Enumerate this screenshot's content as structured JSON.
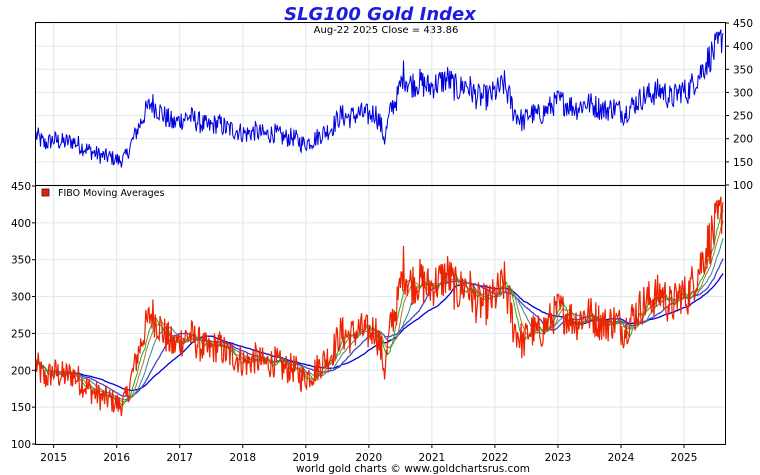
{
  "chart_data": [
    {
      "type": "line",
      "title": "SLG100 Gold Index",
      "subtitle": "Aug-22  2025   Close = 433.86",
      "ylim": [
        100,
        450
      ],
      "y_ticks": [
        "100",
        "150",
        "200",
        "250",
        "300",
        "350",
        "400",
        "450"
      ],
      "y_axis_side": "right",
      "x_ticks": [
        "2015",
        "2016",
        "2017",
        "2018",
        "2019",
        "2020",
        "2021",
        "2022",
        "2023",
        "2024",
        "2025"
      ],
      "xlim": [
        2014.72,
        2025.65
      ],
      "grid": true,
      "series": [
        {
          "color": "#0000dd",
          "x": [
            2014.72,
            2014.85,
            2015.0,
            2015.15,
            2015.3,
            2015.45,
            2015.6,
            2015.75,
            2015.9,
            2016.05,
            2016.15,
            2016.3,
            2016.45,
            2016.55,
            2016.65,
            2016.75,
            2016.9,
            2017.0,
            2017.15,
            2017.3,
            2017.45,
            2017.6,
            2017.75,
            2017.9,
            2018.05,
            2018.2,
            2018.35,
            2018.5,
            2018.65,
            2018.8,
            2018.95,
            2019.1,
            2019.25,
            2019.4,
            2019.55,
            2019.7,
            2019.85,
            2020.0,
            2020.1,
            2020.2,
            2020.25,
            2020.35,
            2020.45,
            2020.55,
            2020.65,
            2020.8,
            2020.95,
            2021.1,
            2021.25,
            2021.4,
            2021.55,
            2021.7,
            2021.85,
            2022.0,
            2022.15,
            2022.3,
            2022.45,
            2022.55,
            2022.7,
            2022.85,
            2023.0,
            2023.15,
            2023.3,
            2023.45,
            2023.6,
            2023.75,
            2023.9,
            2024.05,
            2024.2,
            2024.35,
            2024.5,
            2024.65,
            2024.8,
            2024.95,
            2025.05,
            2025.15,
            2025.25,
            2025.35,
            2025.45,
            2025.55,
            2025.62
          ],
          "values": [
            208,
            188,
            198,
            192,
            195,
            183,
            172,
            163,
            160,
            152,
            162,
            212,
            255,
            278,
            265,
            250,
            232,
            240,
            248,
            236,
            225,
            234,
            222,
            218,
            210,
            216,
            208,
            212,
            202,
            203,
            189,
            196,
            210,
            222,
            250,
            246,
            255,
            250,
            258,
            225,
            200,
            265,
            288,
            340,
            318,
            322,
            312,
            320,
            330,
            305,
            318,
            292,
            288,
            300,
            318,
            260,
            236,
            255,
            250,
            265,
            282,
            275,
            266,
            278,
            270,
            262,
            268,
            255,
            275,
            290,
            298,
            305,
            285,
            305,
            300,
            322,
            340,
            365,
            385,
            400,
            428
          ]
        }
      ]
    },
    {
      "type": "line",
      "legend": "FIBO  Moving  Averages",
      "legend_position": "top-left",
      "ylim": [
        100,
        450
      ],
      "y_ticks": [
        "100",
        "150",
        "200",
        "250",
        "300",
        "350",
        "400",
        "450"
      ],
      "y_axis_side": "left",
      "x_ticks": [
        "2015",
        "2016",
        "2017",
        "2018",
        "2019",
        "2020",
        "2021",
        "2022",
        "2023",
        "2024",
        "2025"
      ],
      "xlim": [
        2014.72,
        2025.65
      ],
      "grid": true,
      "series": [
        {
          "color": "#ee2200",
          "x": [
            2014.72,
            2014.85,
            2015.0,
            2015.15,
            2015.3,
            2015.45,
            2015.6,
            2015.75,
            2015.9,
            2016.05,
            2016.15,
            2016.3,
            2016.45,
            2016.55,
            2016.65,
            2016.75,
            2016.9,
            2017.0,
            2017.15,
            2017.3,
            2017.45,
            2017.6,
            2017.75,
            2017.9,
            2018.05,
            2018.2,
            2018.35,
            2018.5,
            2018.65,
            2018.8,
            2018.95,
            2019.1,
            2019.25,
            2019.4,
            2019.55,
            2019.7,
            2019.85,
            2020.0,
            2020.1,
            2020.2,
            2020.25,
            2020.35,
            2020.45,
            2020.55,
            2020.65,
            2020.8,
            2020.95,
            2021.1,
            2021.25,
            2021.4,
            2021.55,
            2021.7,
            2021.85,
            2022.0,
            2022.15,
            2022.3,
            2022.45,
            2022.55,
            2022.7,
            2022.85,
            2023.0,
            2023.15,
            2023.3,
            2023.45,
            2023.6,
            2023.75,
            2023.9,
            2024.05,
            2024.2,
            2024.35,
            2024.5,
            2024.65,
            2024.8,
            2024.95,
            2025.05,
            2025.15,
            2025.25,
            2025.35,
            2025.45,
            2025.55,
            2025.62
          ],
          "values": [
            208,
            188,
            198,
            192,
            195,
            183,
            172,
            163,
            160,
            152,
            162,
            212,
            255,
            278,
            265,
            250,
            232,
            240,
            248,
            236,
            225,
            234,
            222,
            218,
            210,
            216,
            208,
            212,
            202,
            203,
            189,
            196,
            210,
            222,
            250,
            246,
            255,
            250,
            258,
            225,
            200,
            265,
            288,
            340,
            318,
            322,
            312,
            320,
            330,
            305,
            318,
            292,
            288,
            300,
            318,
            260,
            236,
            255,
            250,
            265,
            282,
            275,
            266,
            278,
            270,
            262,
            268,
            255,
            275,
            290,
            298,
            305,
            285,
            305,
            300,
            322,
            340,
            365,
            385,
            400,
            428
          ]
        }
      ],
      "moving_average_colors": [
        "#22aa22",
        "#aa7733",
        "#338888",
        "#4444cc",
        "#0000dd"
      ]
    }
  ],
  "footer": "world gold charts © www.goldchartsrus.com",
  "legend_swatch_color": "#dd2211"
}
